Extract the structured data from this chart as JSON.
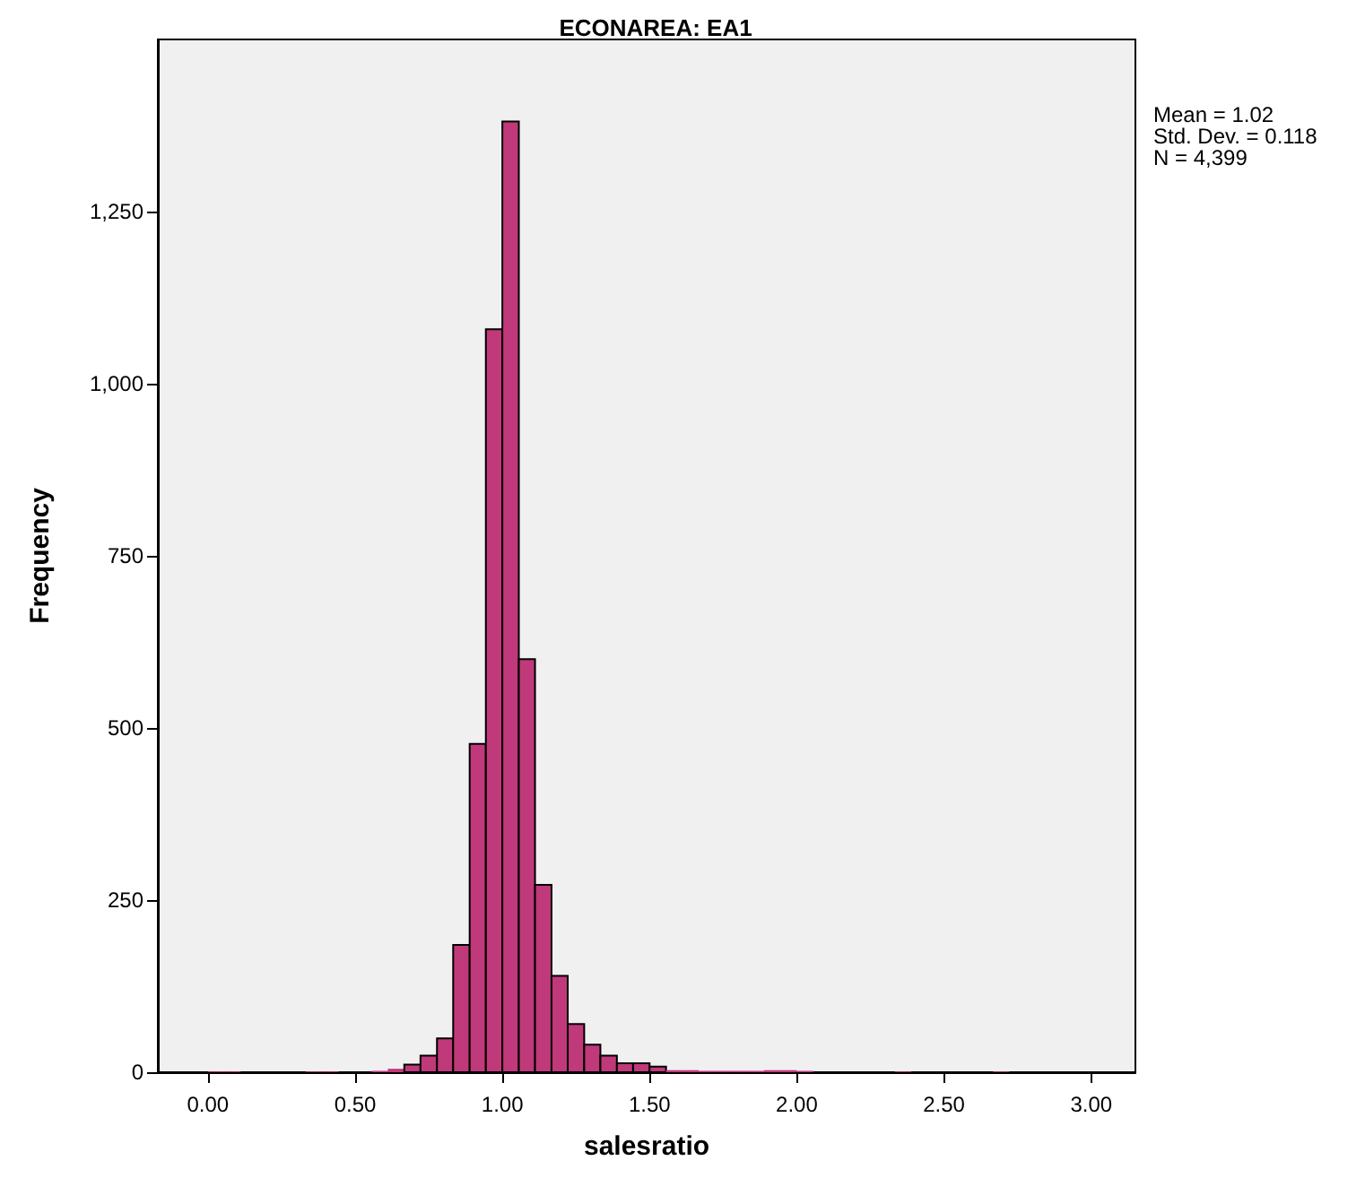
{
  "chart_data": {
    "type": "histogram",
    "title": "ECONAREA: EA1",
    "xlabel": "salesratio",
    "ylabel": "Frequency",
    "bins": [
      0,
      0.056,
      0.111,
      0.167,
      0.222,
      0.278,
      0.333,
      0.389,
      0.444,
      0.5,
      0.556,
      0.611,
      0.667,
      0.722,
      0.778,
      0.833,
      0.889,
      0.944,
      1,
      1.056,
      1.111,
      1.167,
      1.222,
      1.278,
      1.333,
      1.389,
      1.444,
      1.5,
      1.556,
      1.611,
      1.667,
      1.722,
      1.778,
      1.833,
      1.889,
      1.944,
      2,
      2.056,
      2.111,
      2.167,
      2.222,
      2.278,
      2.333,
      2.389,
      2.444,
      2.5,
      2.556,
      2.611,
      2.667,
      2.722
    ],
    "values": [
      1,
      1,
      0,
      0,
      0,
      0,
      1,
      1,
      0,
      0,
      2,
      5,
      11,
      24,
      49,
      185,
      477,
      1079,
      1381,
      600,
      272,
      140,
      70,
      40,
      24,
      13,
      13,
      8,
      3,
      3,
      2,
      2,
      2,
      2,
      3,
      3,
      2,
      0,
      0,
      0,
      0,
      0,
      1,
      0,
      0,
      0,
      0,
      0,
      1
    ],
    "color": "#c0397a",
    "xlim": [
      -0.17,
      3.15
    ],
    "xticks": [
      {
        "value": 0,
        "label": "0.00"
      },
      {
        "value": 0.5,
        "label": "0.50"
      },
      {
        "value": 1,
        "label": "1.00"
      },
      {
        "value": 1.5,
        "label": "1.50"
      },
      {
        "value": 2,
        "label": "2.00"
      },
      {
        "value": 2.5,
        "label": "2.50"
      },
      {
        "value": 3,
        "label": "3.00"
      }
    ],
    "ylim": [
      0,
      1500
    ],
    "yticks": [
      0,
      250,
      500,
      750,
      {
        "value": 1000,
        "label": "1,000"
      },
      {
        "value": 1250,
        "label": "1,250"
      }
    ],
    "annotations": [
      "Mean = 1.02",
      "Std. Dev. = 0.118",
      "N = 4,399"
    ],
    "grid": false,
    "legend": false
  }
}
